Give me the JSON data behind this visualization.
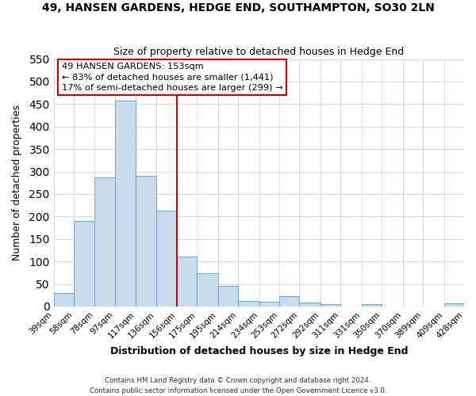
{
  "title": "49, HANSEN GARDENS, HEDGE END, SOUTHAMPTON, SO30 2LN",
  "subtitle": "Size of property relative to detached houses in Hedge End",
  "xlabel": "Distribution of detached houses by size in Hedge End",
  "ylabel": "Number of detached properties",
  "bar_labels": [
    "39sqm",
    "58sqm",
    "78sqm",
    "97sqm",
    "117sqm",
    "136sqm",
    "156sqm",
    "175sqm",
    "195sqm",
    "214sqm",
    "234sqm",
    "253sqm",
    "272sqm",
    "292sqm",
    "311sqm",
    "331sqm",
    "350sqm",
    "370sqm",
    "389sqm",
    "409sqm",
    "428sqm"
  ],
  "bar_values": [
    30,
    190,
    287,
    458,
    290,
    213,
    110,
    73,
    46,
    13,
    10,
    22,
    8,
    5,
    0,
    5,
    0,
    0,
    0,
    7
  ],
  "bin_edges": [
    39,
    58,
    78,
    97,
    117,
    136,
    156,
    175,
    195,
    214,
    234,
    253,
    272,
    292,
    311,
    331,
    350,
    370,
    389,
    409,
    428
  ],
  "bar_color": "#c8dcee",
  "bar_edge_color": "#6aafd6",
  "vline_x": 156,
  "vline_color": "#cc0000",
  "ylim": [
    0,
    550
  ],
  "yticks": [
    0,
    50,
    100,
    150,
    200,
    250,
    300,
    350,
    400,
    450,
    500,
    550
  ],
  "annotation_box_text": "49 HANSEN GARDENS: 153sqm\n← 83% of detached houses are smaller (1,441)\n17% of semi-detached houses are larger (299) →",
  "footnote1": "Contains HM Land Registry data © Crown copyright and database right 2024.",
  "footnote2": "Contains public sector information licensed under the Open Government Licence v3.0.",
  "grid_color": "#d0d8e8",
  "bg_color": "#ffffff"
}
